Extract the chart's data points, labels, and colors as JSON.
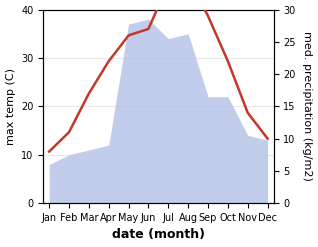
{
  "months": [
    "Jan",
    "Feb",
    "Mar",
    "Apr",
    "May",
    "Jun",
    "Jul",
    "Aug",
    "Sep",
    "Oct",
    "Nov",
    "Dec"
  ],
  "temp": [
    8,
    11,
    17,
    22,
    26,
    27,
    34,
    35,
    29,
    22,
    14,
    10
  ],
  "precip": [
    8,
    10,
    11,
    12,
    37,
    38,
    34,
    35,
    22,
    22,
    14,
    13
  ],
  "temp_color": "#c0392b",
  "precip_fill_color": "#b8c4e8",
  "temp_ylim": [
    0,
    40
  ],
  "precip_ylim": [
    0,
    30
  ],
  "temp_axis": "right",
  "precip_axis": "left",
  "xlabel": "date (month)",
  "ylabel_left": "max temp (C)",
  "ylabel_right": "med. precipitation (kg/m2)",
  "bg_color": "#ffffff",
  "left_yticks": [
    0,
    10,
    20,
    30,
    40
  ],
  "right_yticks": [
    0,
    5,
    10,
    15,
    20,
    25,
    30
  ],
  "tick_fontsize": 7,
  "xlabel_fontsize": 9,
  "ylabel_fontsize": 8
}
